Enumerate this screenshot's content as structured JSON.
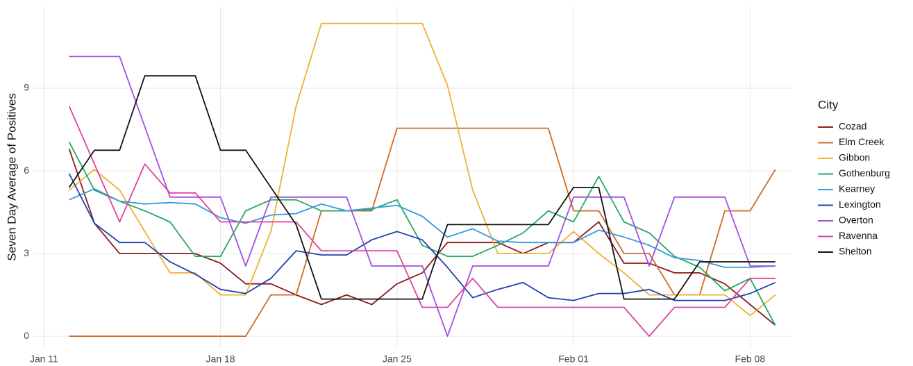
{
  "chart_data": {
    "type": "line",
    "y_label": "Seven Day Average of Positives",
    "legend_title": "City",
    "legend": "right",
    "grid": true,
    "x": [
      "01-12",
      "01-13",
      "01-14",
      "01-15",
      "01-16",
      "01-17",
      "01-18",
      "01-19",
      "01-20",
      "01-21",
      "01-22",
      "01-23",
      "01-24",
      "01-25",
      "01-26",
      "01-27",
      "01-28",
      "01-29",
      "01-30",
      "01-31",
      "02-01",
      "02-02",
      "02-03",
      "02-04",
      "02-05",
      "02-06",
      "02-07",
      "02-08",
      "02-09"
    ],
    "xlim": [
      "01-10",
      "02-10"
    ],
    "xticks": [
      {
        "value": "01-11",
        "label": "Jan 11"
      },
      {
        "value": "01-18",
        "label": "Jan 18"
      },
      {
        "value": "01-25",
        "label": "Jan 25"
      },
      {
        "value": "02-01",
        "label": "Feb 01"
      },
      {
        "value": "02-08",
        "label": "Feb 08"
      }
    ],
    "ylim": [
      -0.4,
      11.95
    ],
    "yticks": [
      0,
      3,
      6,
      9
    ],
    "series": [
      {
        "name": "Cozad",
        "color": "#8b1a1a",
        "values": [
          6.8,
          4.1,
          3.0,
          3.0,
          3.0,
          3.0,
          2.65,
          1.9,
          1.9,
          1.5,
          1.15,
          1.5,
          1.15,
          1.9,
          2.3,
          3.4,
          3.4,
          3.4,
          3.0,
          3.4,
          3.4,
          4.15,
          2.65,
          2.65,
          2.3,
          2.3,
          1.9,
          1.15,
          0.4
        ]
      },
      {
        "name": "Elm Creek",
        "color": "#cc6a28",
        "values": [
          0,
          0,
          0,
          0,
          0,
          0,
          0,
          0,
          1.5,
          1.5,
          4.55,
          4.55,
          4.55,
          7.55,
          7.55,
          7.55,
          7.55,
          7.55,
          7.55,
          7.55,
          4.55,
          4.55,
          3.0,
          3.0,
          1.5,
          1.5,
          4.55,
          4.55,
          6.05
        ]
      },
      {
        "name": "Gibbon",
        "color": "#f0b030",
        "values": [
          5.3,
          6.05,
          5.3,
          3.8,
          2.3,
          2.3,
          1.5,
          1.5,
          3.8,
          8.35,
          11.35,
          11.35,
          11.35,
          11.35,
          11.35,
          9.1,
          5.3,
          3.0,
          3.0,
          3.0,
          3.8,
          3.0,
          2.3,
          1.5,
          1.5,
          1.5,
          1.5,
          0.75,
          1.5
        ]
      },
      {
        "name": "Gothenburg",
        "color": "#22a860",
        "values": [
          7.05,
          5.3,
          4.9,
          4.55,
          4.15,
          2.9,
          2.9,
          4.55,
          4.95,
          4.95,
          4.55,
          4.55,
          4.6,
          4.95,
          3.3,
          2.9,
          2.9,
          3.3,
          3.75,
          4.55,
          4.15,
          5.8,
          4.15,
          3.75,
          2.9,
          2.5,
          1.65,
          2.1,
          0.4
        ]
      },
      {
        "name": "Kearney",
        "color": "#3399dd",
        "values": [
          4.95,
          5.35,
          4.9,
          4.8,
          4.85,
          4.8,
          4.3,
          4.1,
          4.4,
          4.45,
          4.8,
          4.55,
          4.65,
          4.75,
          4.35,
          3.6,
          3.9,
          3.45,
          3.4,
          3.4,
          3.4,
          3.85,
          3.6,
          3.3,
          2.85,
          2.75,
          2.5,
          2.5,
          2.55
        ]
      },
      {
        "name": "Lexington",
        "color": "#1f3fb0",
        "values": [
          5.9,
          4.1,
          3.4,
          3.4,
          2.7,
          2.25,
          1.7,
          1.55,
          2.1,
          3.1,
          2.95,
          2.95,
          3.5,
          3.8,
          3.5,
          2.5,
          1.4,
          1.7,
          1.95,
          1.4,
          1.3,
          1.55,
          1.55,
          1.7,
          1.3,
          1.3,
          1.3,
          1.55,
          1.95
        ]
      },
      {
        "name": "Overton",
        "color": "#a64de0",
        "values": [
          10.15,
          10.15,
          10.15,
          7.6,
          5.05,
          5.05,
          5.05,
          2.55,
          5.05,
          5.05,
          5.05,
          5.05,
          2.55,
          2.55,
          2.55,
          0,
          2.55,
          2.55,
          2.55,
          2.55,
          5.05,
          5.05,
          5.05,
          2.55,
          5.05,
          5.05,
          5.05,
          2.55,
          2.55
        ]
      },
      {
        "name": "Ravenna",
        "color": "#e040a0",
        "values": [
          8.35,
          6.25,
          4.15,
          6.25,
          5.2,
          5.2,
          4.15,
          4.15,
          4.15,
          4.15,
          3.1,
          3.1,
          3.1,
          3.1,
          1.05,
          1.05,
          2.1,
          1.05,
          1.05,
          1.05,
          1.05,
          1.05,
          1.05,
          0,
          1.05,
          1.05,
          1.05,
          2.1,
          2.1
        ]
      },
      {
        "name": "Shelton",
        "color": "#111111",
        "values": [
          5.4,
          6.75,
          6.75,
          9.45,
          9.45,
          9.45,
          6.75,
          6.75,
          5.4,
          4.05,
          1.35,
          1.35,
          1.35,
          1.35,
          1.35,
          4.05,
          4.05,
          4.05,
          4.05,
          4.05,
          5.4,
          5.4,
          1.35,
          1.35,
          1.35,
          2.7,
          2.7,
          2.7,
          2.7
        ]
      }
    ]
  }
}
